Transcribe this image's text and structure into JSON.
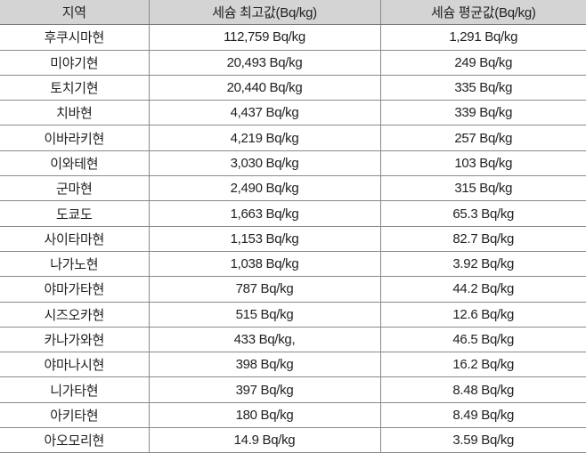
{
  "table": {
    "headers": [
      "지역",
      "세슘 최고값(Bq/kg)",
      "세슘 평균값(Bq/kg)"
    ],
    "header_bg": "#d4d4d4",
    "rows": [
      [
        "후쿠시마현",
        "112,759 Bq/kg",
        "1,291 Bq/kg"
      ],
      [
        "미야기현",
        "20,493 Bq/kg",
        "249 Bq/kg"
      ],
      [
        "토치기현",
        "20,440 Bq/kg",
        "335 Bq/kg"
      ],
      [
        "치바현",
        "4,437 Bq/kg",
        "339 Bq/kg"
      ],
      [
        "이바라키현",
        "4,219 Bq/kg",
        "257 Bq/kg"
      ],
      [
        "이와테현",
        "3,030 Bq/kg",
        "103 Bq/kg"
      ],
      [
        "군마현",
        "2,490 Bq/kg",
        "315 Bq/kg"
      ],
      [
        "도쿄도",
        "1,663 Bq/kg",
        "65.3 Bq/kg"
      ],
      [
        "사이타마현",
        "1,153 Bq/kg",
        "82.7 Bq/kg"
      ],
      [
        "나가노현",
        "1,038 Bq/kg",
        "3.92 Bq/kg"
      ],
      [
        "야마가타현",
        "787 Bq/kg",
        "44.2 Bq/kg"
      ],
      [
        "시즈오카현",
        "515 Bq/kg",
        "12.6 Bq/kg"
      ],
      [
        "카나가와현",
        "433 Bq/kg,",
        "46.5 Bq/kg"
      ],
      [
        "야마나시현",
        "398 Bq/kg",
        "16.2 Bq/kg"
      ],
      [
        "니가타현",
        "397 Bq/kg",
        "8.48 Bq/kg"
      ],
      [
        "아키타현",
        "180 Bq/kg",
        "8.49 Bq/kg"
      ],
      [
        "아오모리현",
        "14.9 Bq/kg",
        "3.59 Bq/kg"
      ]
    ]
  }
}
